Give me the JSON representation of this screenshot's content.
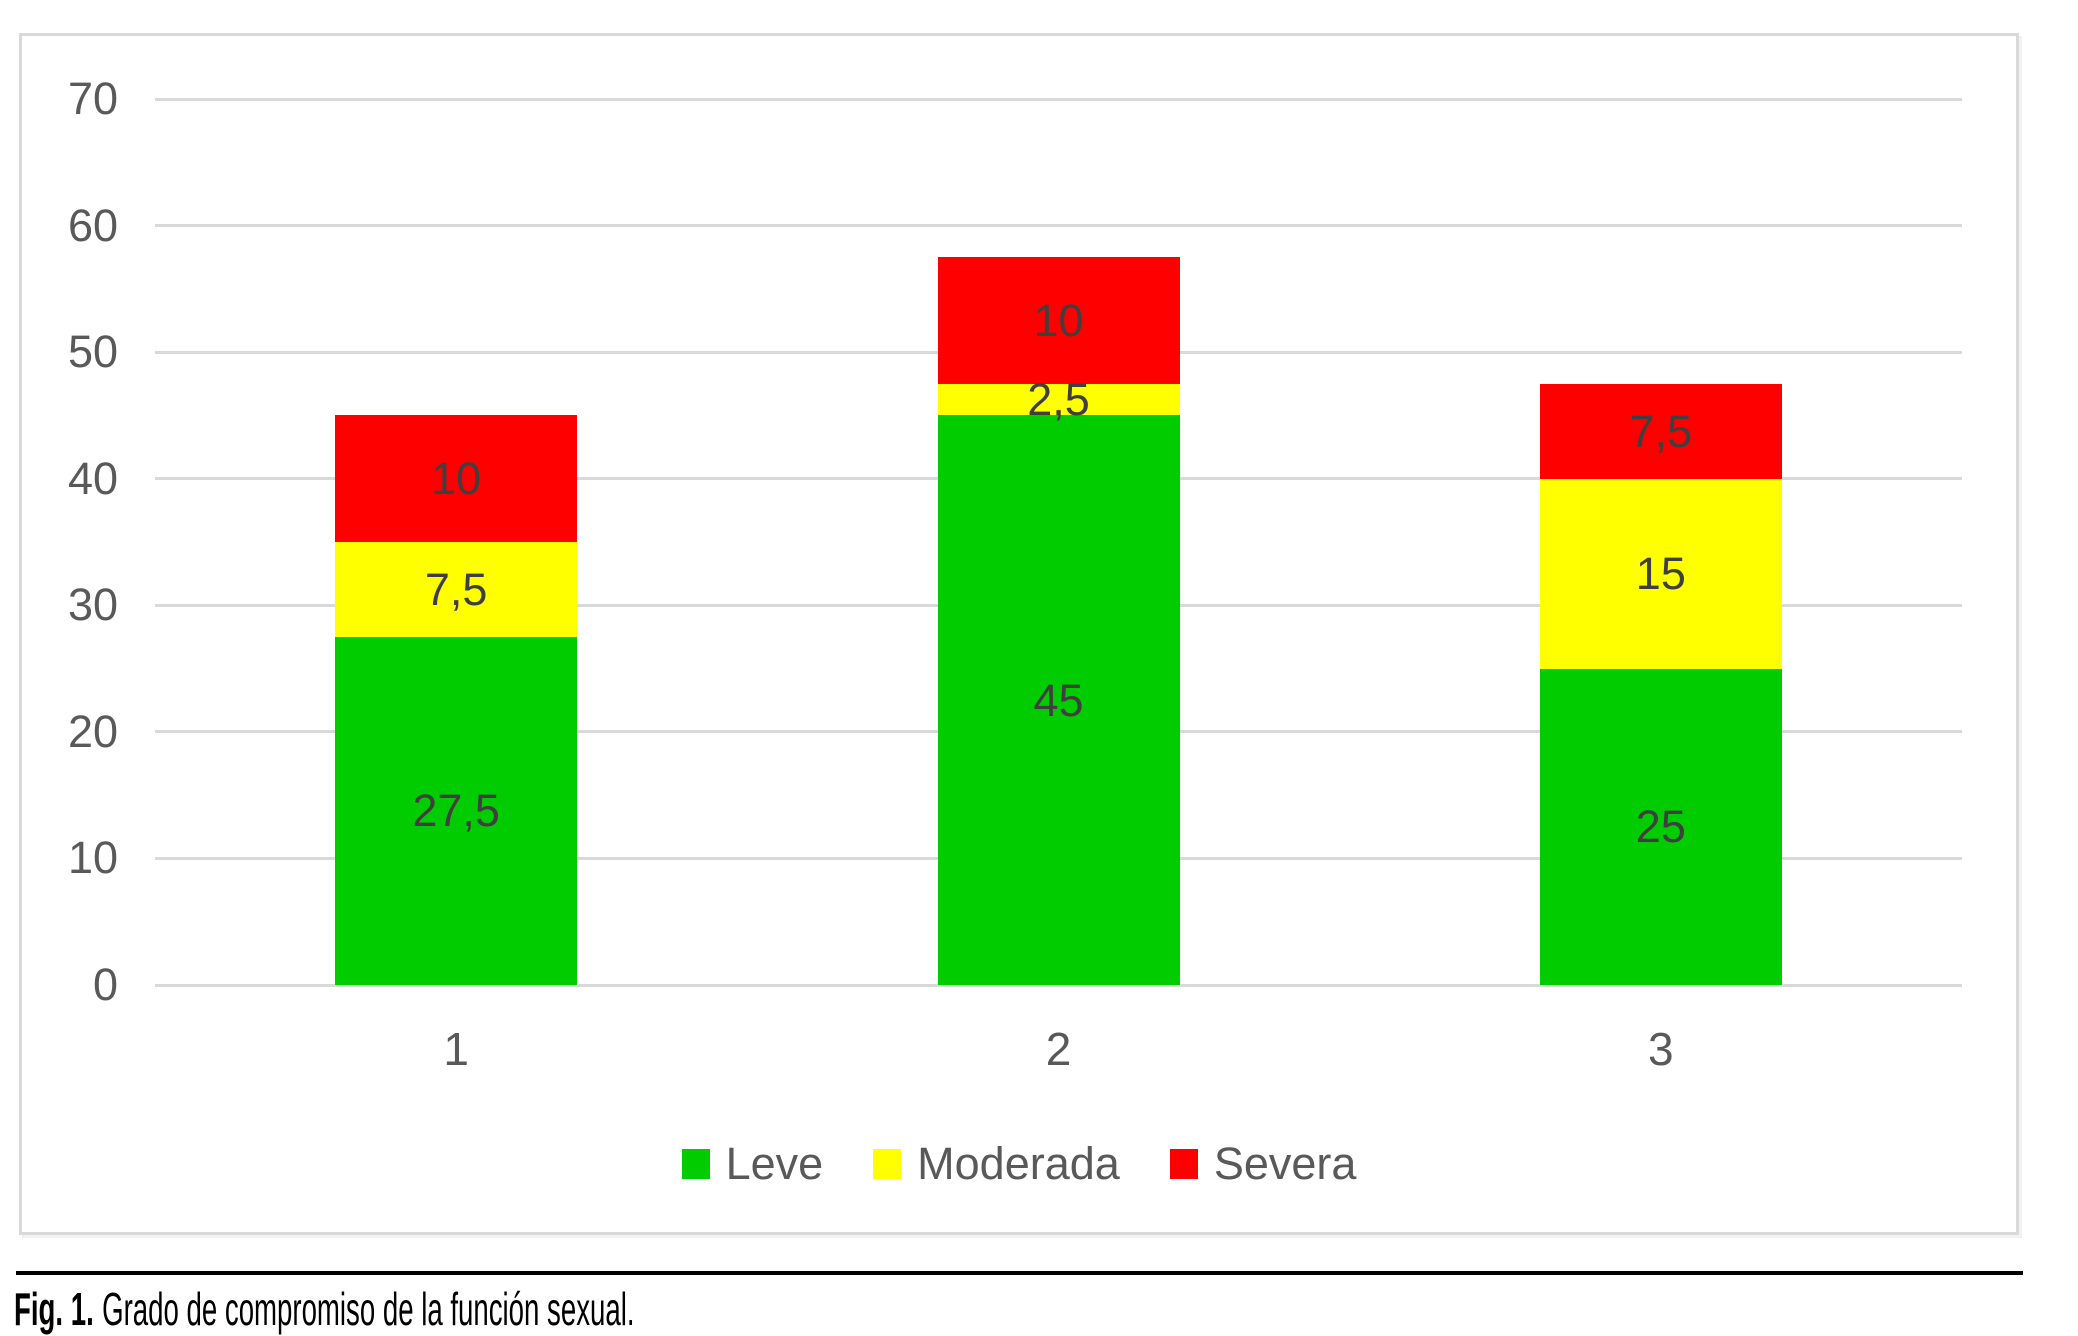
{
  "figure_caption": {
    "prefix": "Fig. 1.",
    "text": "Grado de compromiso de la función sexual."
  },
  "chart_data": {
    "type": "bar",
    "stacked": true,
    "title": "",
    "xlabel": "",
    "ylabel": "",
    "categories": [
      "1",
      "2",
      "3"
    ],
    "series": [
      {
        "name": "Leve",
        "color": "#00cc00",
        "values": [
          27.5,
          45,
          25
        ],
        "labels": [
          "27,5",
          "45",
          "25"
        ]
      },
      {
        "name": "Moderada",
        "color": "#ffff00",
        "values": [
          7.5,
          2.5,
          15
        ],
        "labels": [
          "7,5",
          "2,5",
          "15"
        ]
      },
      {
        "name": "Severa",
        "color": "#ff0000",
        "values": [
          10,
          10,
          7.5
        ],
        "labels": [
          "10",
          "10",
          "7,5"
        ]
      }
    ],
    "totals": [
      45,
      57.5,
      47.5
    ],
    "ylim": [
      0,
      70
    ],
    "ytick_step": 10,
    "yticks": [
      "0",
      "10",
      "20",
      "30",
      "40",
      "50",
      "60",
      "70"
    ],
    "grid": true,
    "legend_position": "bottom",
    "colors": {
      "grid": "#d9d9d9",
      "chart_border": "#d9d9d9",
      "axis_text": "#595959",
      "data_label_text": "#3f3f3f",
      "caption_text": "#000000"
    }
  }
}
